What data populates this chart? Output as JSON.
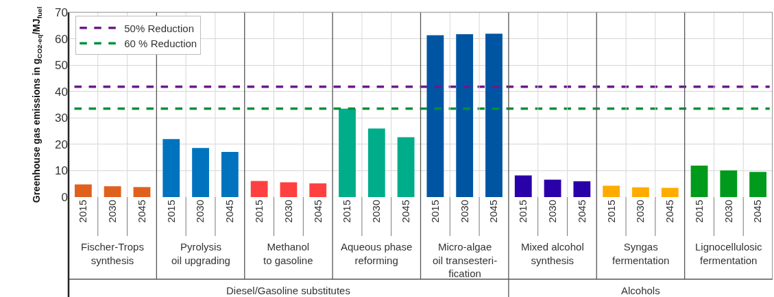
{
  "chart_data": {
    "type": "bar",
    "ylabel": "Greenhouse gas emissions in g$_{CO2-eq}$/MJ$_{fuel}$",
    "categories": [
      "2015",
      "2030",
      "2045",
      "2015",
      "2030",
      "2045",
      "2015",
      "2030",
      "2045",
      "2015",
      "2030",
      "2045",
      "2015",
      "2030",
      "2045",
      "2015",
      "2030",
      "2045",
      "2015",
      "2030",
      "2045",
      "2015",
      "2030",
      "2045"
    ],
    "values": [
      4.8,
      4.1,
      3.8,
      22,
      18.6,
      17.1,
      6.1,
      5.6,
      5.2,
      33.5,
      26,
      22.7,
      61.3,
      61.7,
      61.9,
      8.2,
      6.6,
      6.0,
      4.3,
      3.7,
      3.5,
      11.9,
      10.1,
      9.5
    ],
    "colors": [
      "#e0601e",
      "#e0601e",
      "#e0601e",
      "#0073bf",
      "#0073bf",
      "#0073bf",
      "#ff4040",
      "#ff4040",
      "#ff4040",
      "#00ad8a",
      "#00ad8a",
      "#00ad8a",
      "#0055a3",
      "#0055a3",
      "#0055a3",
      "#2a00a8",
      "#2a00a8",
      "#2a00a8",
      "#ffab00",
      "#ffab00",
      "#ffab00",
      "#009a1c",
      "#009a1c",
      "#009a1c"
    ],
    "ylim": [
      0,
      70
    ],
    "yticks": [
      0,
      10,
      20,
      30,
      40,
      50,
      60,
      70
    ],
    "grid": true,
    "legend": "top left",
    "ref_lines": [
      {
        "axis": "y",
        "value": 41.8,
        "label": "50% Reduction",
        "color": "#6a1a8a",
        "line_style": "dashed"
      },
      {
        "axis": "y",
        "value": 33.5,
        "label": "60 % Reduction",
        "color": "#00913a",
        "line_style": "dashed"
      }
    ],
    "annotations": [
      "Fischer-Trops\nsynthesis",
      "Pyrolysis\noil upgrading",
      "Methanol\nto gasoline",
      "Aqueous phase\nreforming",
      "Micro-algae\noil transesteri-\nfication",
      "Mixed alcohol\nsynthesis",
      "Syngas\nfermentation",
      "Lignocellulosic\nfermentation",
      "Diesel/Gasoline substitutes",
      "Alcohols"
    ]
  }
}
